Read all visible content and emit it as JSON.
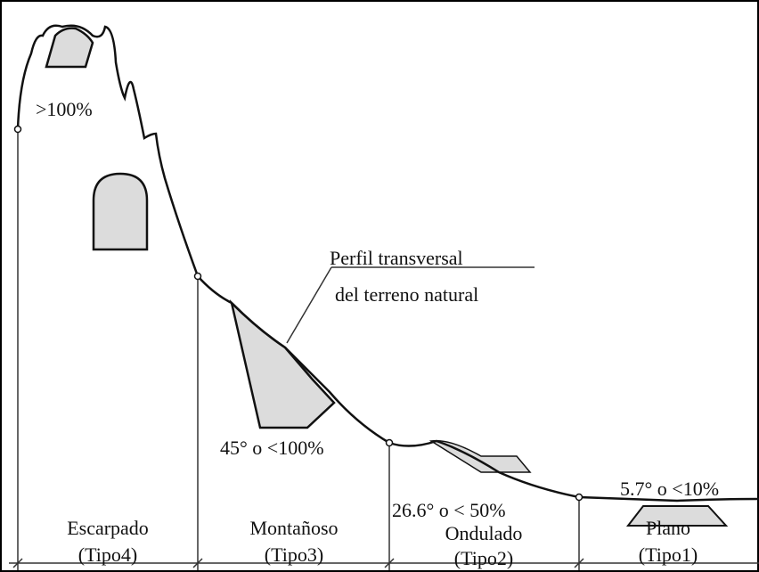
{
  "annotations": {
    "escarpado_slope": ">100%",
    "profile_label": [
      "Perfil transversal",
      "del terreno natural"
    ],
    "montanoso_slope": "45° o <100%",
    "ondulado_slope": "26.6° o < 50%",
    "plano_slope": "5.7° o <10%"
  },
  "terrain_types": [
    {
      "name": "Escarpado",
      "type": "(Tipo4)"
    },
    {
      "name": "Montañoso",
      "type": "(Tipo3)"
    },
    {
      "name": "Ondulado",
      "type": "(Tipo2)"
    },
    {
      "name": "Plano",
      "type": "(Tipo1)"
    }
  ]
}
